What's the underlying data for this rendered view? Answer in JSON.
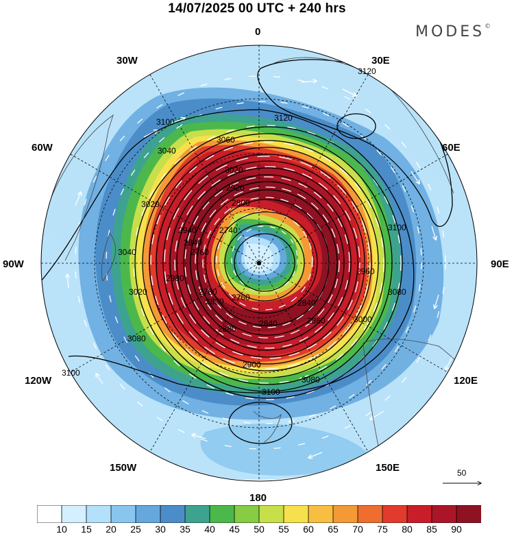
{
  "title": "14/07/2025  00 UTC  + 240 hrs",
  "brand": "MODES",
  "brand_mark": "©",
  "longitude_labels": {
    "l0": "0",
    "l30e": "30E",
    "l60e": "60E",
    "l90e": "90E",
    "l120e": "120E",
    "l150e": "150E",
    "l180": "180",
    "l150w": "150W",
    "l120w": "120W",
    "l90w": "90W",
    "l60w": "60W",
    "l30w": "30W"
  },
  "contour_labels": [
    "3120",
    "3120",
    "3100",
    "3100",
    "3100",
    "3100",
    "3080",
    "3080",
    "3080",
    "3060",
    "3040",
    "3040",
    "3020",
    "3020",
    "3020",
    "3000",
    "2980",
    "2960",
    "2940",
    "2920",
    "2900",
    "2880",
    "2860",
    "2840",
    "2840",
    "2820",
    "2800",
    "2780",
    "2760",
    "2740",
    "2760",
    "2840"
  ],
  "vector_reference": {
    "value": "50"
  },
  "colorbar": {
    "ticks": [
      "10",
      "15",
      "20",
      "25",
      "30",
      "35",
      "40",
      "45",
      "50",
      "55",
      "60",
      "65",
      "70",
      "75",
      "80",
      "85",
      "90"
    ],
    "colors": [
      "#ffffff",
      "#d4efff",
      "#b3e0fa",
      "#88c6ee",
      "#64a8de",
      "#4b8dc8",
      "#3ea38e",
      "#4cb84b",
      "#86cc44",
      "#c7df4a",
      "#f6e14d",
      "#f8be42",
      "#f39a36",
      "#ee6d2f",
      "#e13b2d",
      "#c71e2a",
      "#aa1627",
      "#8e1222"
    ]
  }
}
